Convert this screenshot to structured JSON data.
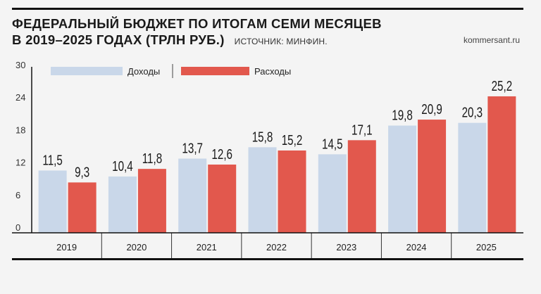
{
  "title_line1": "ФЕДЕРАЛЬНЫЙ БЮДЖЕТ ПО ИТОГАМ СЕМИ МЕСЯЦЕВ",
  "title_line2": "В 2019–2025 ГОДАХ (ТРЛН РУБ.)",
  "source": "ИСТОЧНИК: МИНФИН.",
  "site": "kommersant.ru",
  "colors": {
    "income": "#c9d7e9",
    "expense": "#e2584d",
    "axis": "#111111"
  },
  "chart_data": {
    "type": "bar",
    "title": "ФЕДЕРАЛЬНЫЙ БЮДЖЕТ ПО ИТОГАМ СЕМИ МЕСЯЦЕВ В 2019–2025 ГОДАХ (ТРЛН РУБ.)",
    "categories": [
      "2019",
      "2020",
      "2021",
      "2022",
      "2023",
      "2024",
      "2025"
    ],
    "series": [
      {
        "name": "Доходы",
        "values": [
          11.5,
          10.4,
          13.7,
          15.8,
          14.5,
          19.8,
          20.3
        ],
        "labels": [
          "11,5",
          "10,4",
          "13,7",
          "15,8",
          "14,5",
          "19,8",
          "20,3"
        ]
      },
      {
        "name": "Расходы",
        "values": [
          9.3,
          11.8,
          12.6,
          15.2,
          17.1,
          20.9,
          25.2
        ],
        "labels": [
          "9,3",
          "11,8",
          "12,6",
          "15,2",
          "17,1",
          "20,9",
          "25,2"
        ]
      }
    ],
    "yticks": [
      0,
      6,
      12,
      18,
      24,
      30
    ],
    "ylim": [
      0,
      30
    ],
    "legend": "top-left",
    "grid": false
  }
}
